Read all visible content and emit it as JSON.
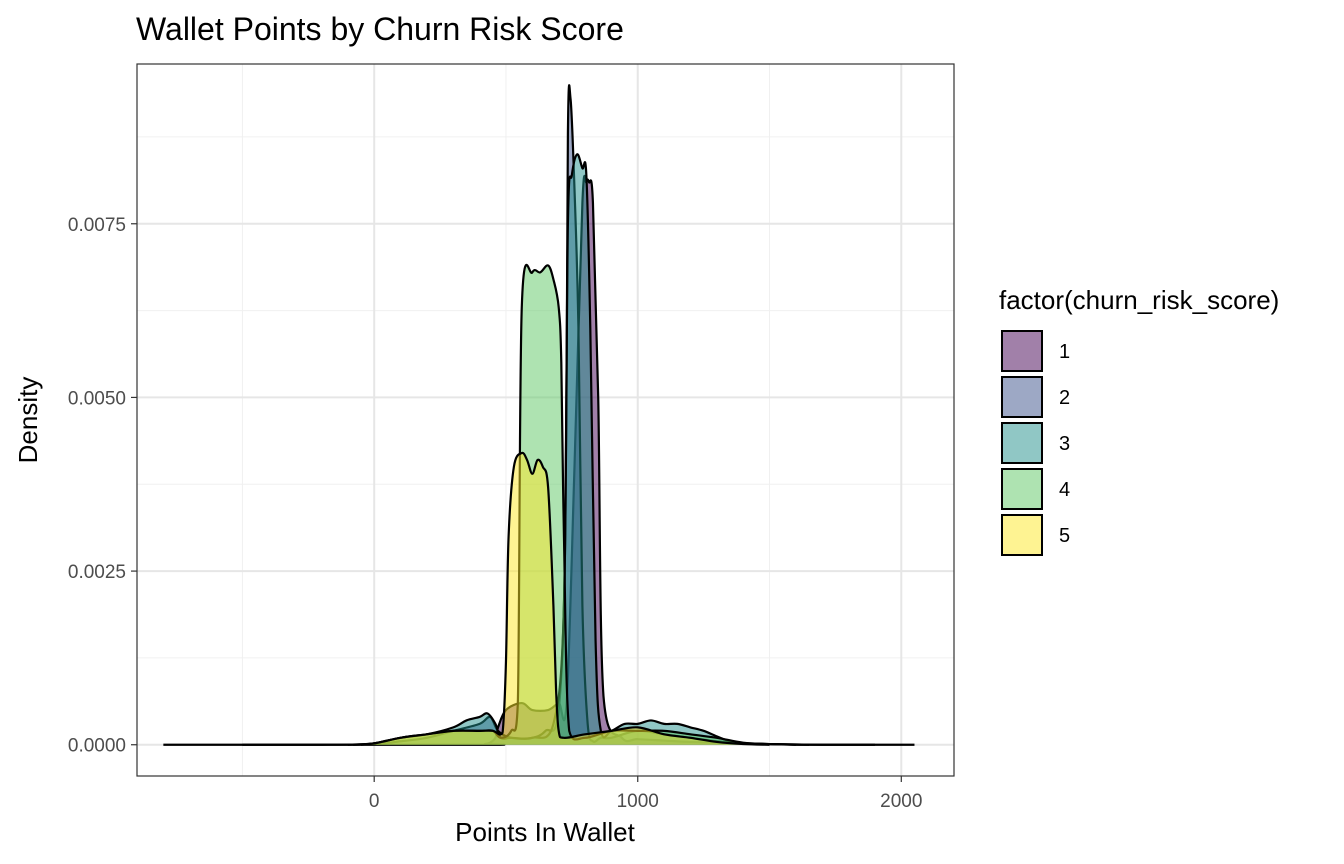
{
  "chart_data": {
    "type": "area",
    "title": "Wallet Points by Churn Risk Score",
    "xlabel": "Points In Wallet",
    "ylabel": "Density",
    "xlim": [
      -900,
      2200
    ],
    "ylim": [
      -0.00045,
      0.0098
    ],
    "x_ticks": [
      0,
      1000,
      2000
    ],
    "x_tick_labels": [
      "0",
      "1000",
      "2000"
    ],
    "y_ticks": [
      0,
      0.0025,
      0.005,
      0.0075
    ],
    "y_tick_labels": [
      "0.0000",
      "0.0025",
      "0.0050",
      "0.0075"
    ],
    "grid": true,
    "legend": {
      "title": "factor(churn_risk_score)",
      "position": "right"
    },
    "colors": [
      "#440154",
      "#3B528B",
      "#21908C",
      "#5DC863",
      "#FDE725"
    ],
    "fill_opacity": 0.5,
    "series": [
      {
        "name": "1",
        "x": [
          -800,
          400,
          420,
          440,
          460,
          470,
          500,
          560,
          600,
          660,
          700,
          730,
          760,
          790,
          805,
          815,
          830,
          850,
          870,
          940,
          1000,
          1100,
          1200,
          1300,
          1400,
          1500,
          1600,
          1700,
          1800,
          1900,
          2050
        ],
        "values": [
          0,
          0,
          1e-05,
          3e-05,
          0.0001,
          0.00025,
          0.0005,
          0.0006,
          0.0005,
          0.0005,
          0.0006,
          0.0006,
          0.004,
          0.0078,
          0.0081,
          0.0081,
          0.0078,
          0.005,
          0.0007,
          0.0001,
          8e-05,
          6e-05,
          4e-05,
          3e-05,
          2e-05,
          1e-05,
          0,
          0,
          0,
          0,
          0
        ]
      },
      {
        "name": "2",
        "x": [
          -500,
          -200,
          0,
          100,
          200,
          300,
          400,
          440,
          470,
          520,
          600,
          650,
          700,
          725,
          735,
          745,
          760,
          775,
          790,
          810,
          830,
          860,
          900,
          1000,
          1100,
          1200,
          1300,
          1400,
          1500,
          1700,
          1900
        ],
        "values": [
          0,
          0,
          1e-05,
          5e-05,
          0.0001,
          0.0002,
          0.0003,
          0.0004,
          0.0002,
          0.0001,
          0.0001,
          0.0002,
          0.0005,
          0.003,
          0.0088,
          0.0093,
          0.008,
          0.006,
          0.002,
          0.0003,
          5e-05,
          0.0001,
          0.0001,
          0.0002,
          0.00015,
          0.0001,
          5e-05,
          2e-05,
          1e-05,
          0,
          0
        ]
      },
      {
        "name": "3",
        "x": [
          -100,
          0,
          100,
          200,
          300,
          350,
          400,
          430,
          460,
          480,
          520,
          600,
          680,
          720,
          735,
          750,
          770,
          790,
          805,
          820,
          840,
          860,
          900,
          950,
          1000,
          1050,
          1100,
          1150,
          1200,
          1250,
          1300,
          1350,
          1400,
          1500,
          1650
        ],
        "values": [
          0,
          2e-05,
          0.0001,
          0.00015,
          0.00025,
          0.00035,
          0.0004,
          0.00045,
          0.0003,
          0.0001,
          0.0001,
          0.0001,
          0.0003,
          0.002,
          0.0075,
          0.0082,
          0.0085,
          0.0083,
          0.0082,
          0.006,
          0.0015,
          0.0002,
          0.0002,
          0.0003,
          0.0003,
          0.00035,
          0.0003,
          0.0003,
          0.00025,
          0.0002,
          0.00012,
          5e-05,
          2e-05,
          1e-05,
          0
        ]
      },
      {
        "name": "4",
        "x": [
          -50,
          0,
          100,
          200,
          300,
          400,
          450,
          480,
          520,
          545,
          560,
          600,
          630,
          660,
          680,
          700,
          710,
          720,
          740,
          800,
          900,
          1000,
          1100,
          1200,
          1300,
          1400,
          1500,
          1600
        ],
        "values": [
          0,
          2e-05,
          0.0001,
          0.00015,
          0.0002,
          0.0002,
          0.0002,
          0.0001,
          0.0002,
          0.0006,
          0.0063,
          0.0068,
          0.0068,
          0.0069,
          0.0067,
          0.0063,
          0.0055,
          0.003,
          0.0002,
          0.0001,
          0.0002,
          0.0002,
          0.0002,
          0.00015,
          0.0001,
          3e-05,
          1e-05,
          0
        ]
      },
      {
        "name": "5",
        "x": [
          -80,
          0,
          100,
          200,
          300,
          400,
          450,
          480,
          490,
          500,
          510,
          530,
          560,
          580,
          600,
          620,
          640,
          660,
          680,
          690,
          700,
          720,
          800,
          900,
          1000,
          1100,
          1200,
          1300,
          1400,
          1500
        ],
        "values": [
          0,
          2e-05,
          0.0001,
          0.00015,
          0.0002,
          0.0002,
          0.0002,
          0.00015,
          0.0003,
          0.0012,
          0.003,
          0.004,
          0.0042,
          0.0041,
          0.0039,
          0.0041,
          0.004,
          0.0037,
          0.002,
          0.0008,
          0.0002,
          0.0001,
          0.00015,
          0.0002,
          0.00025,
          0.00015,
          0.0001,
          4e-05,
          1e-05,
          0
        ]
      }
    ]
  }
}
